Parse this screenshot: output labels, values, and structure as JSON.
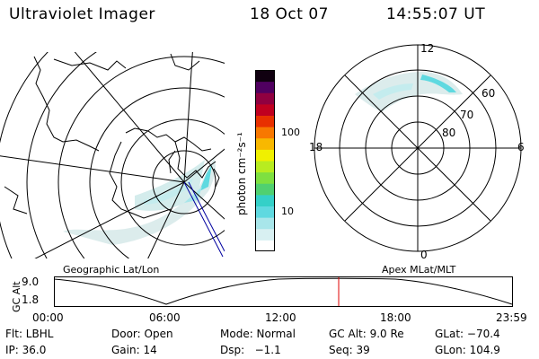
{
  "header": {
    "instrument": "Ultraviolet Imager",
    "date": "18 Oct 07",
    "time": "14:55:07 UT"
  },
  "geo_map": {
    "caption": "Geographic Lat/Lon"
  },
  "colorbar": {
    "unit_label": "photon cm⁻²s⁻¹",
    "ticks": [
      {
        "label": "100",
        "value": 100
      },
      {
        "label": "10",
        "value": 10
      }
    ],
    "colors": [
      "#ffffff",
      "#d8f0f2",
      "#a8e6ea",
      "#5fd9e0",
      "#34d0c8",
      "#50d070",
      "#7ee040",
      "#b8ec20",
      "#f0f000",
      "#f8b800",
      "#f87800",
      "#e83000",
      "#c00020",
      "#900040",
      "#500060",
      "#100010"
    ]
  },
  "polar_plot": {
    "caption": "Apex MLat/MLT",
    "mlt_labels": {
      "top": "12",
      "left": "18",
      "right": "6",
      "bottom": "0"
    },
    "lat_labels": [
      "60",
      "70",
      "80"
    ]
  },
  "timeline": {
    "ylabel": "GC Alt",
    "ymax_label": "9.0",
    "ymin_label": "1.8",
    "x_ticks": [
      "00:00",
      "06:00",
      "12:00",
      "18:00",
      "23:59"
    ],
    "current_time_fraction": 0.6216
  },
  "status": {
    "flt": "Flt: LBHL",
    "door": "Door: Open",
    "mode": "Mode: Normal",
    "gc_alt": "GC Alt: 9.0 Re",
    "glat": "GLat: −70.4",
    "ip": "IP: 36.0",
    "gain": "Gain: 14",
    "dsp": "Dsp:   −1.1",
    "seq": "Seq: 39",
    "glon": "GLon: 104.9"
  },
  "colors": {
    "aurora_light": "#dcecec",
    "aurora_cyan": "#5fd9e0",
    "current_time_marker": "#e00000",
    "track": "#0000a0"
  }
}
